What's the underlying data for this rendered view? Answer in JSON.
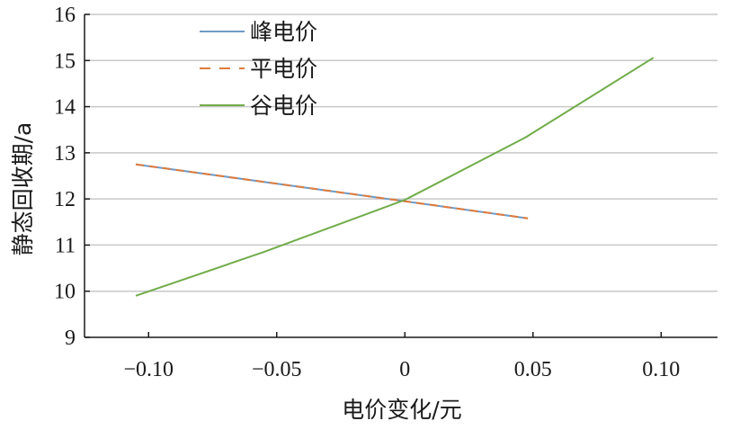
{
  "chart_data": {
    "type": "line",
    "xlabel": "电价变化/元",
    "ylabel": "静态回收期/a",
    "xlim": [
      -0.125,
      0.122
    ],
    "ylim": [
      9,
      16
    ],
    "x_ticks": [
      -0.1,
      -0.05,
      0,
      0.05,
      0.1
    ],
    "x_tick_labels": [
      "−0.10",
      "−0.05",
      "0",
      "0.05",
      "0.10"
    ],
    "y_ticks": [
      9,
      10,
      11,
      12,
      13,
      14,
      15,
      16
    ],
    "y_tick_labels": [
      "9",
      "10",
      "11",
      "12",
      "13",
      "14",
      "15",
      "16"
    ],
    "grid": "horizontal",
    "legend_position": "top-left",
    "series": [
      {
        "name": "峰电价",
        "color": "#6f9ac5",
        "style": "solid",
        "points": [
          [
            -0.105,
            12.75
          ],
          [
            0,
            11.95
          ],
          [
            0.048,
            11.58
          ]
        ]
      },
      {
        "name": "平电价",
        "color": "#e07b3c",
        "style": "dashed",
        "points": [
          [
            -0.105,
            12.75
          ],
          [
            0,
            11.95
          ],
          [
            0.048,
            11.58
          ]
        ]
      },
      {
        "name": "谷电价",
        "color": "#71ac4a",
        "style": "solid",
        "points": [
          [
            -0.105,
            9.9
          ],
          [
            -0.055,
            10.85
          ],
          [
            0,
            11.98
          ],
          [
            0.047,
            13.33
          ],
          [
            0.097,
            15.06
          ]
        ]
      }
    ]
  }
}
